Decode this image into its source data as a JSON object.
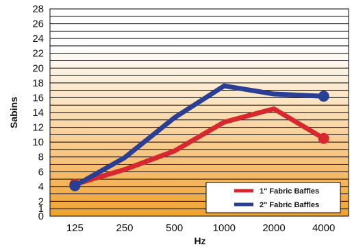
{
  "chart_data": {
    "type": "line",
    "title": "",
    "xlabel": "Hz",
    "ylabel": "Sabins",
    "categories": [
      "125",
      "250",
      "500",
      "1000",
      "2000",
      "4000"
    ],
    "ylim": [
      0,
      28
    ],
    "y_ticks": [
      "0",
      "1",
      "2",
      "4",
      "6",
      "8",
      "10",
      "12",
      "14",
      "16",
      "18",
      "20",
      "22",
      "24",
      "26",
      "28"
    ],
    "y_tick_values": [
      0,
      1,
      2,
      4,
      6,
      8,
      10,
      12,
      14,
      16,
      18,
      20,
      22,
      24,
      26,
      28
    ],
    "grid": true,
    "background": "white-to-orange vertical gradient",
    "legend_position": "bottom-right",
    "series": [
      {
        "name": "1\" Fabric Baffles",
        "color": "#d7282f",
        "values": [
          4.3,
          6.3,
          8.8,
          12.7,
          14.5,
          10.5
        ]
      },
      {
        "name": "2\" Fabric Baffles",
        "color": "#2a3f93",
        "values": [
          4.1,
          7.9,
          13.3,
          17.6,
          16.5,
          16.2
        ]
      }
    ]
  }
}
